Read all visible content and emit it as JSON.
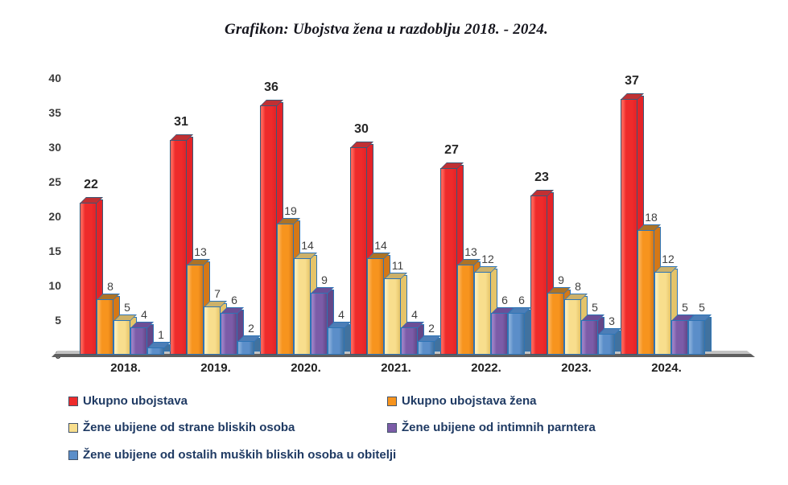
{
  "title": "Grafikon: Ubojstva žena u razdoblju 2018. - 2024.",
  "chart_data": {
    "type": "bar",
    "style": "3d-grouped",
    "title": "Grafikon: Ubojstva žena u razdoblju 2018. - 2024.",
    "categories": [
      "2018.",
      "2019.",
      "2020.",
      "2021.",
      "2022.",
      "2023.",
      "2024."
    ],
    "series": [
      {
        "name": "Ukupno ubojstava",
        "values": [
          22,
          31,
          36,
          30,
          27,
          23,
          37
        ],
        "color": "#ee2b2b",
        "color_light": "#ff6257",
        "color_side": "#e42327",
        "color_top": "#c03033",
        "outline": "#3b5876",
        "label_style": "total"
      },
      {
        "name": "Ukupno ubojstava žena",
        "values": [
          8,
          13,
          19,
          14,
          13,
          9,
          18
        ],
        "color": "#f7941e",
        "color_light": "#fbad4e",
        "color_side": "#d57817",
        "color_top": "#ad7326",
        "outline": "#2e74b5",
        "label_style": "normal"
      },
      {
        "name": "Žene ubijene od strane bliskih osoba",
        "values": [
          5,
          7,
          14,
          11,
          12,
          8,
          12
        ],
        "color": "#f8de8d",
        "color_light": "#fcedb8",
        "color_side": "#e5c469",
        "color_top": "#cdb169",
        "outline": "#2e74b5",
        "label_style": "normal"
      },
      {
        "name": "Žene ubijene od intimnih parntera",
        "values": [
          4,
          6,
          9,
          4,
          6,
          5,
          5
        ],
        "color": "#7c5ca8",
        "color_light": "#9b7ec4",
        "color_side": "#634788",
        "color_top": "#6b4f97",
        "outline": "#2e74b5",
        "label_style": "normal"
      },
      {
        "name": "Žene ubijene od ostalih muških bliskih osoba u obitelji",
        "values": [
          1,
          2,
          4,
          2,
          6,
          3,
          5
        ],
        "color": "#5b8ec9",
        "color_light": "#82abd9",
        "color_side": "#41729f",
        "color_top": "#4c7eb7",
        "outline": "#2e74b5",
        "label_style": "normal"
      }
    ],
    "ylabel": "",
    "xlabel": "",
    "ylim": [
      0,
      40
    ],
    "yticks": [
      0,
      5,
      10,
      15,
      20,
      25,
      30,
      35,
      40
    ],
    "grid": false,
    "legend_position": "bottom-two-columns",
    "floor_color_top": "#c3c3c3",
    "floor_color_front": "#5f5f5f"
  }
}
